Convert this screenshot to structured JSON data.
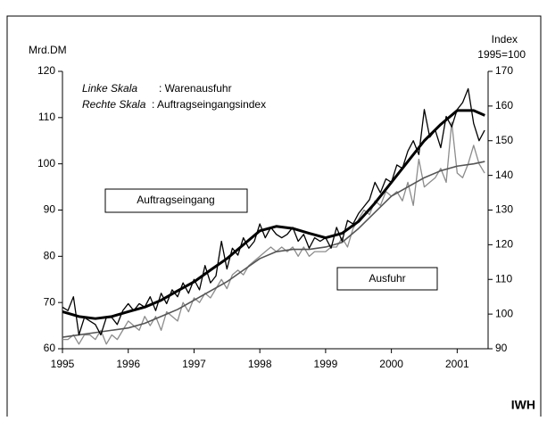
{
  "chart_data": {
    "type": "line",
    "y_label": "Mrd.DM",
    "y2_label": "Index",
    "y2_sublabel": "1995=100",
    "source": "IWH",
    "notes": [
      {
        "label": "Linke Skala",
        "text": ": Warenausfuhr"
      },
      {
        "label": "Rechte Skala",
        "text": ": Auftragseingangsindex"
      }
    ],
    "xlim": [
      1995,
      2001.47
    ],
    "xticks": [
      1995,
      1996,
      1997,
      1998,
      1999,
      2000,
      2001
    ],
    "ylim": [
      60,
      120
    ],
    "yticks": [
      60,
      70,
      80,
      90,
      100,
      110,
      120
    ],
    "y2lim": [
      90,
      170
    ],
    "y2ticks": [
      90,
      100,
      110,
      120,
      130,
      140,
      150,
      160,
      170
    ],
    "grid": false,
    "series": [
      {
        "name": "Auftragseingang",
        "color": "#000000",
        "axis": "y2",
        "x": [
          1995,
          1995.083,
          1995.167,
          1995.25,
          1995.333,
          1995.417,
          1995.5,
          1995.583,
          1995.667,
          1995.75,
          1995.833,
          1995.917,
          1996,
          1996.083,
          1996.167,
          1996.25,
          1996.333,
          1996.417,
          1996.5,
          1996.583,
          1996.667,
          1996.75,
          1996.833,
          1996.917,
          1997,
          1997.083,
          1997.167,
          1997.25,
          1997.333,
          1997.417,
          1997.5,
          1997.583,
          1997.667,
          1997.75,
          1997.833,
          1997.917,
          1998,
          1998.083,
          1998.167,
          1998.25,
          1998.333,
          1998.417,
          1998.5,
          1998.583,
          1998.667,
          1998.75,
          1998.833,
          1998.917,
          1999,
          1999.083,
          1999.167,
          1999.25,
          1999.333,
          1999.417,
          1999.5,
          1999.583,
          1999.667,
          1999.75,
          1999.833,
          1999.917,
          2000,
          2000.083,
          2000.167,
          2000.25,
          2000.333,
          2000.417,
          2000.5,
          2000.583,
          2000.667,
          2000.75,
          2000.833,
          2000.917,
          2001,
          2001.083,
          2001.167,
          2001.25,
          2001.333,
          2001.417
        ],
        "values": [
          102,
          101,
          105,
          94,
          99,
          98,
          97,
          94,
          99,
          99,
          97,
          101,
          103,
          101,
          103,
          102,
          105,
          101,
          106,
          103,
          107,
          105,
          109,
          106,
          110,
          107,
          114,
          109,
          111,
          121,
          113,
          119,
          117,
          122,
          119,
          121,
          126,
          122,
          125,
          123,
          122,
          123,
          125,
          121,
          123,
          119,
          122,
          121,
          122,
          119,
          125,
          121,
          127,
          126,
          129,
          131,
          133,
          138,
          135,
          139,
          138,
          143,
          142,
          147,
          150,
          146,
          159,
          151,
          153,
          148,
          157,
          154,
          159,
          161,
          165,
          155,
          150,
          153
        ]
      },
      {
        "color": "#000000",
        "axis": "y2",
        "x": [
          1995,
          1995.25,
          1995.5,
          1995.75,
          1996,
          1996.25,
          1996.5,
          1996.75,
          1997,
          1997.25,
          1997.5,
          1997.75,
          1998,
          1998.25,
          1998.5,
          1998.75,
          1999,
          1999.25,
          1999.5,
          1999.75,
          2000,
          2000.25,
          2000.5,
          2000.75,
          2001,
          2001.25,
          2001.42
        ],
        "values": [
          100.7,
          99.3,
          98.7,
          99.3,
          100.7,
          102,
          104,
          106.7,
          109.3,
          112.7,
          116,
          120,
          124,
          125.3,
          124.7,
          123.3,
          122,
          123.3,
          126.7,
          132,
          138,
          144,
          150,
          154.7,
          158.7,
          158.7,
          157.3
        ]
      },
      {
        "name": "Ausfuhr",
        "color": "#8c8c8c",
        "axis": "y",
        "x": [
          1995,
          1995.083,
          1995.167,
          1995.25,
          1995.333,
          1995.417,
          1995.5,
          1995.583,
          1995.667,
          1995.75,
          1995.833,
          1995.917,
          1996,
          1996.083,
          1996.167,
          1996.25,
          1996.333,
          1996.417,
          1996.5,
          1996.583,
          1996.667,
          1996.75,
          1996.833,
          1996.917,
          1997,
          1997.083,
          1997.167,
          1997.25,
          1997.333,
          1997.417,
          1997.5,
          1997.583,
          1997.667,
          1997.75,
          1997.833,
          1997.917,
          1998,
          1998.083,
          1998.167,
          1998.25,
          1998.333,
          1998.417,
          1998.5,
          1998.583,
          1998.667,
          1998.75,
          1998.833,
          1998.917,
          1999,
          1999.083,
          1999.167,
          1999.25,
          1999.333,
          1999.417,
          1999.5,
          1999.583,
          1999.667,
          1999.75,
          1999.833,
          1999.917,
          2000,
          2000.083,
          2000.167,
          2000.25,
          2000.333,
          2000.417,
          2000.5,
          2000.583,
          2000.667,
          2000.75,
          2000.833,
          2000.917,
          2001,
          2001.083,
          2001.167,
          2001.25,
          2001.333,
          2001.417
        ],
        "values": [
          62,
          62,
          63,
          61,
          63,
          63,
          62,
          64,
          61,
          63,
          62,
          64,
          66,
          65,
          64,
          67,
          65,
          67,
          64,
          68,
          67,
          66,
          70,
          68,
          71,
          70,
          72,
          71,
          73,
          75,
          73,
          76,
          77,
          76,
          78,
          79,
          80,
          81,
          82,
          81,
          82,
          81,
          82,
          80,
          82,
          80,
          81,
          81,
          81,
          82,
          82,
          84,
          82,
          86,
          88,
          90,
          89,
          92,
          91,
          94,
          93,
          94,
          92,
          96,
          91,
          101,
          95,
          96,
          97,
          99,
          96,
          109,
          98,
          97,
          100,
          104,
          100,
          98
        ]
      },
      {
        "color": "#555555",
        "axis": "y",
        "x": [
          1995,
          1995.25,
          1995.5,
          1995.75,
          1996,
          1996.25,
          1996.5,
          1996.75,
          1997,
          1997.25,
          1997.5,
          1997.75,
          1998,
          1998.25,
          1998.5,
          1998.75,
          1999,
          1999.25,
          1999.5,
          1999.75,
          2000,
          2000.25,
          2000.5,
          2000.75,
          2001,
          2001.25,
          2001.42
        ],
        "values": [
          62.5,
          63,
          63.5,
          64,
          64.5,
          65.5,
          67,
          68.5,
          70.5,
          72.5,
          74.5,
          77,
          79.5,
          81,
          81.5,
          81.5,
          82,
          83,
          86,
          89.5,
          93,
          95,
          97,
          98.5,
          99.5,
          100,
          100.5
        ]
      }
    ]
  }
}
